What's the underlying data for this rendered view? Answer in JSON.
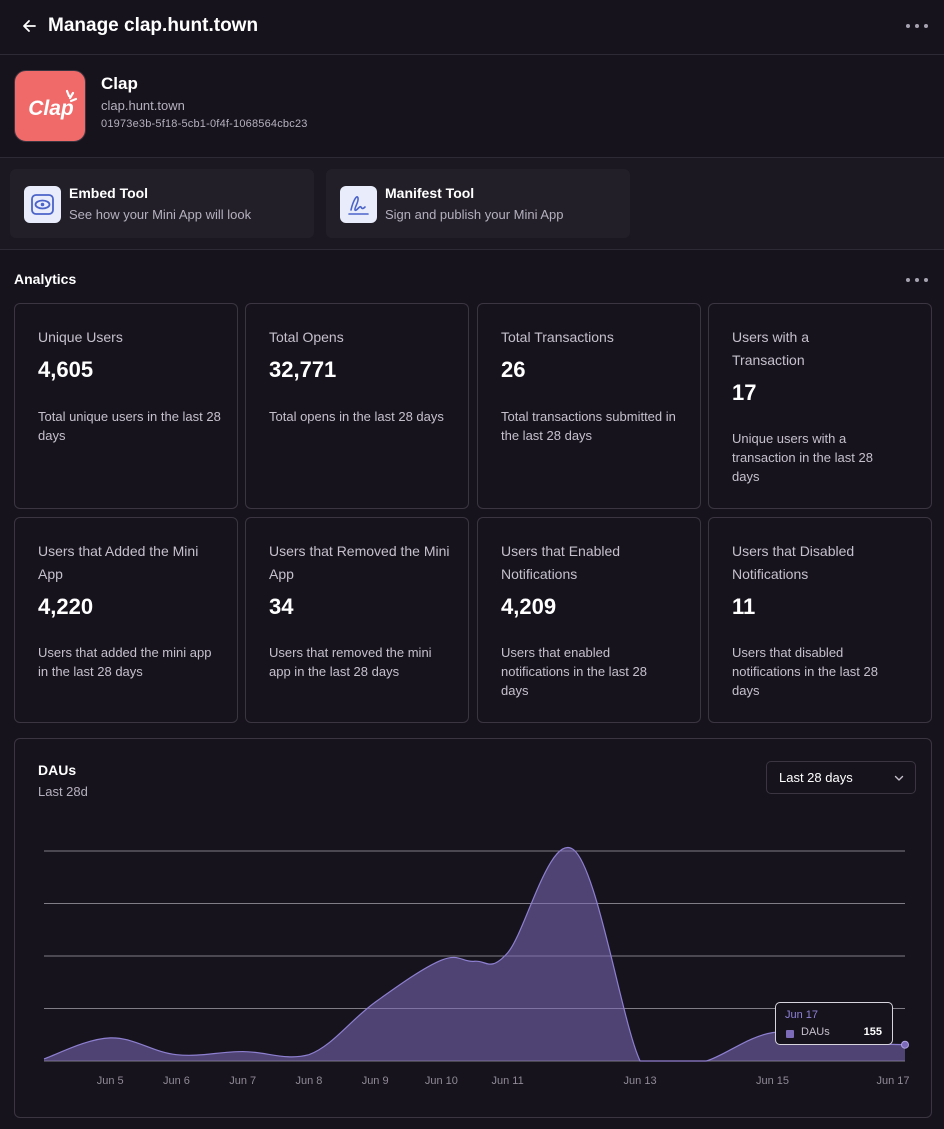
{
  "header": {
    "title": "Manage clap.hunt.town",
    "back_icon": "arrow-left-icon",
    "more_icon": "more-horizontal-icon"
  },
  "app": {
    "name": "Clap",
    "domain": "clap.hunt.town",
    "id": "01973e3b-5f18-5cb1-0f4f-1068564cbc23",
    "logo_text": "Clap",
    "logo_color": "#f16a6a"
  },
  "tools": [
    {
      "title": "Embed Tool",
      "desc": "See how your Mini App will look",
      "icon": "eye-icon"
    },
    {
      "title": "Manifest Tool",
      "desc": "Sign and publish your Mini App",
      "icon": "signature-icon"
    }
  ],
  "analytics": {
    "title": "Analytics",
    "stats": [
      {
        "label": "Unique Users",
        "value": "4,605",
        "desc": "Total unique users in the last 28 days"
      },
      {
        "label": "Total Opens",
        "value": "32,771",
        "desc": "Total opens in the last 28 days"
      },
      {
        "label": "Total Transactions",
        "value": "26",
        "desc": "Total transactions submitted in the last 28 days"
      },
      {
        "label": "Users with a Transaction",
        "value": "17",
        "desc": "Unique users with a transaction in the last 28 days"
      },
      {
        "label": "Users that Added the Mini App",
        "value": "4,220",
        "desc": "Users that added the mini app in the last 28 days"
      },
      {
        "label": "Users that Removed the Mini App",
        "value": "34",
        "desc": "Users that removed the mini app in the last 28 days"
      },
      {
        "label": "Users that Enabled Notifications",
        "value": "4,209",
        "desc": "Users that enabled notifications in the last 28 days"
      },
      {
        "label": "Users that Disabled Notifications",
        "value": "11",
        "desc": "Users that disabled notifications in the last 28 days"
      }
    ]
  },
  "dau": {
    "title": "DAUs",
    "subtitle": "Last 28d",
    "range_label": "Last 28 days",
    "tooltip": {
      "date": "Jun 17",
      "series": "DAUs",
      "value": "155"
    }
  },
  "chart_data": {
    "type": "area",
    "title": "DAUs",
    "subtitle": "Last 28d",
    "x": [
      "Jun 4",
      "Jun 5",
      "Jun 6",
      "Jun 7",
      "Jun 8",
      "Jun 9",
      "Jun 10",
      "Jun 10.5",
      "Jun 11",
      "Jun 12",
      "Jun 13",
      "Jun 13.5",
      "Jun 14",
      "Jun 15",
      "Jun 16",
      "Jun 17"
    ],
    "x_ticks": [
      "Jun 5",
      "Jun 6",
      "Jun 7",
      "Jun 8",
      "Jun 9",
      "Jun 10",
      "Jun 11",
      "Jun 13",
      "Jun 15",
      "Jun 17"
    ],
    "series": [
      {
        "name": "DAUs",
        "values": [
          20,
          220,
          60,
          90,
          60,
          560,
          960,
          950,
          1030,
          2010,
          0,
          0,
          0,
          270,
          180,
          155
        ]
      }
    ],
    "ylim": [
      0,
      2000
    ],
    "grid": true,
    "color": "#7c6bb8"
  }
}
